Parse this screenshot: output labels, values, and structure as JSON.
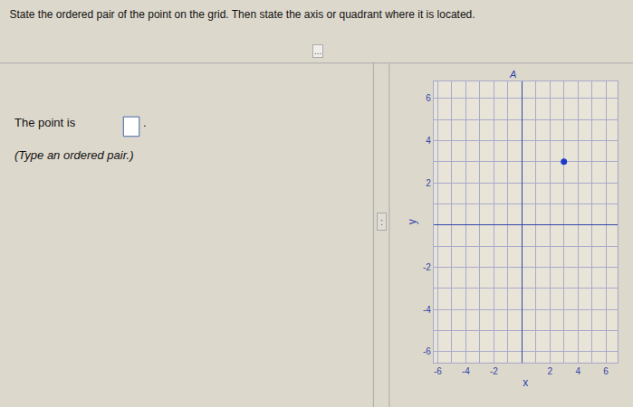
{
  "chart_data": {
    "type": "scatter",
    "title": "State the ordered pair of the point on the grid. Then state the axis or quadrant where it is located.",
    "x": [
      3
    ],
    "values": [
      3
    ],
    "color": "#1a3acc",
    "xlim": [
      -6.3,
      6.8
    ],
    "ylim": [
      -6.5,
      6.8
    ],
    "xticks": [
      -6,
      -4,
      -2,
      2,
      4,
      6
    ],
    "yticks": [
      -6,
      -4,
      -2,
      2,
      4,
      6
    ],
    "xlabel": "x",
    "ylabel": "y",
    "grid": true,
    "annotations": [
      "A",
      "The point is",
      ".",
      "(Type an ordered pair.)",
      "...",
      ":"
    ]
  }
}
